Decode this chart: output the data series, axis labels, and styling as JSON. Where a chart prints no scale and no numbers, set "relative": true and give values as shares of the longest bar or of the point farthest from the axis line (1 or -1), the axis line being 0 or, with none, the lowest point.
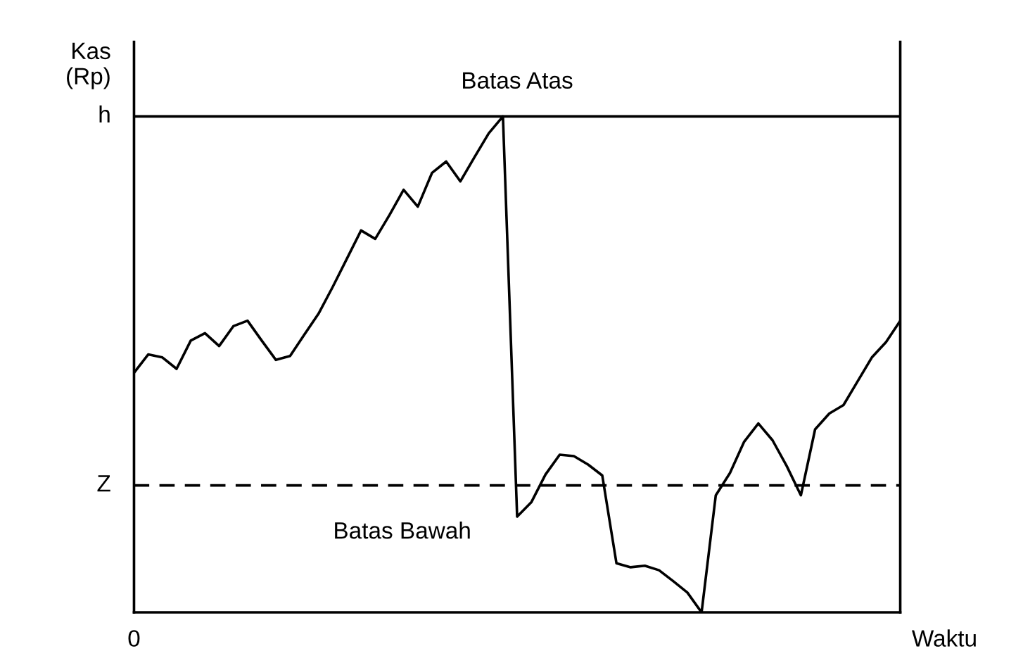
{
  "chart_data": {
    "type": "line",
    "relative": true,
    "xlabel": "Waktu",
    "ylabel": "Kas\n(Rp)",
    "annotations": [
      "Batas Atas",
      "Batas Bawah",
      "0"
    ],
    "ref_lines": [
      {
        "axis": "y",
        "value": 1,
        "label": "h",
        "line_style": "solid",
        "color": "#000000"
      },
      {
        "axis": "y",
        "value": 0.256,
        "label": "Z",
        "line_style": "dashed",
        "color": "#000000"
      }
    ],
    "categories": [
      null,
      null,
      null,
      null,
      null,
      null,
      null,
      null,
      null,
      null,
      null,
      null,
      null,
      null,
      null,
      null,
      null,
      null,
      null,
      null,
      null,
      null,
      null,
      null,
      null,
      null,
      null,
      null,
      null,
      null,
      null,
      null,
      null,
      null,
      null,
      null,
      null,
      null,
      null,
      null,
      null,
      null,
      null,
      null,
      null,
      null,
      null,
      null,
      null,
      null,
      null,
      null,
      null,
      null,
      null
    ],
    "series": [
      {
        "color": "#000000",
        "values": [
          0.483,
          0.52,
          0.514,
          0.491,
          0.548,
          0.563,
          0.537,
          0.577,
          0.588,
          0.548,
          0.509,
          0.517,
          0.56,
          0.602,
          0.656,
          0.713,
          0.77,
          0.753,
          0.801,
          0.852,
          0.818,
          0.886,
          0.909,
          0.869,
          0.918,
          0.966,
          1.0,
          0.193,
          0.222,
          0.278,
          0.318,
          0.315,
          0.298,
          0.276,
          0.099,
          0.091,
          0.094,
          0.085,
          0.063,
          0.04,
          0,
          0.236,
          0.281,
          0.344,
          0.381,
          0.347,
          0.295,
          0.236,
          0.369,
          0.401,
          0.418,
          0.466,
          0.514,
          0.545,
          0.588
        ]
      }
    ],
    "legend": false,
    "marker": "none",
    "line_style": "solid"
  }
}
